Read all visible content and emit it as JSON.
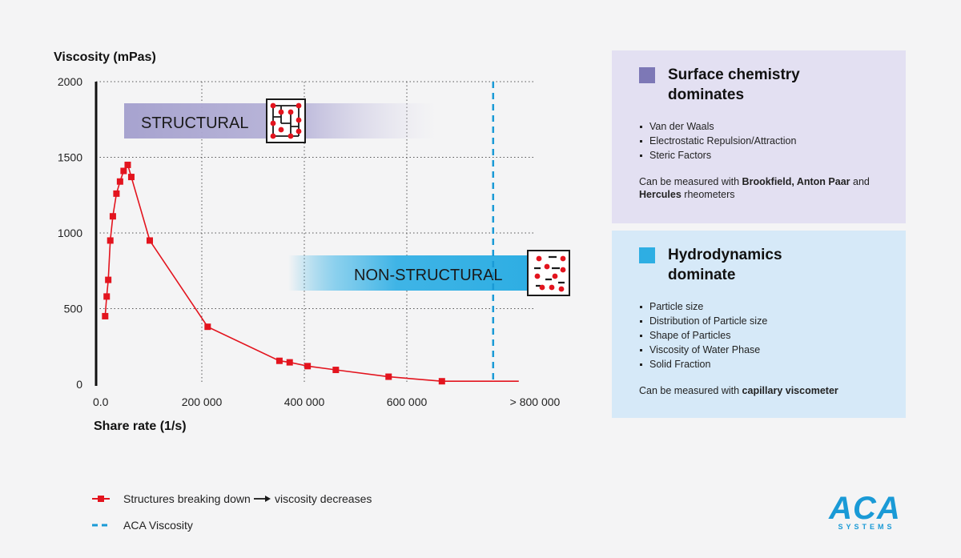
{
  "chart_data": {
    "type": "line",
    "ylabel": "Viscosity (mPas)",
    "xlabel": "Share rate (1/s)",
    "x_ticks": [
      "0.0",
      "200 000",
      "400 000",
      "600 000",
      "> 800 000"
    ],
    "x_tick_values": [
      0,
      200000,
      400000,
      600000,
      800000
    ],
    "y_ticks": [
      "0",
      "500",
      "1000",
      "1500",
      "2000"
    ],
    "y_tick_values": [
      0,
      500,
      1000,
      1500,
      2000
    ],
    "xlim": [
      0,
      820000
    ],
    "ylim": [
      0,
      2000
    ],
    "grid": "dotted",
    "series": [
      {
        "name": "Structures breaking down ➔ viscosity decreases",
        "color": "#e3141e",
        "marker": "square",
        "points": [
          [
            13000,
            450
          ],
          [
            16000,
            580
          ],
          [
            19000,
            690
          ],
          [
            23000,
            950
          ],
          [
            28000,
            1110
          ],
          [
            35000,
            1260
          ],
          [
            42000,
            1340
          ],
          [
            49000,
            1410
          ],
          [
            57000,
            1450
          ],
          [
            64000,
            1370
          ],
          [
            100000,
            950
          ],
          [
            213000,
            380
          ],
          [
            353000,
            155
          ],
          [
            373000,
            145
          ],
          [
            408000,
            120
          ],
          [
            463000,
            95
          ],
          [
            566000,
            50
          ],
          [
            670000,
            20
          ],
          [
            820000,
            20
          ]
        ],
        "markers_shown": 18
      },
      {
        "name": "ACA Viscosity",
        "color": "#1a9ad6",
        "style": "dashed",
        "x": 770000
      }
    ],
    "bands": [
      {
        "label": "STRUCTURAL",
        "color": "#a7a3cf"
      },
      {
        "label": "NON-STRUCTURAL",
        "color": "#2eaee3"
      }
    ]
  },
  "legend": {
    "item1_text_a": "Structures breaking down",
    "item1_text_b": "viscosity decreases",
    "item2_text": "ACA Viscosity"
  },
  "panels": {
    "surface": {
      "color": "#7d78b6",
      "title_line1": "Surface chemistry",
      "title_line2": "dominates",
      "items": [
        "Van der Waals",
        "Electrostatic Repulsion/Attraction",
        "Steric Factors"
      ],
      "note_a": "Can be measured with ",
      "note_b": "Brookfield, Anton Paar",
      "note_c": " and ",
      "note_d": "Hercules",
      "note_e": " rheometers"
    },
    "hydro": {
      "color": "#2eaee3",
      "title_line1": "Hydrodynamics",
      "title_line2": "dominate",
      "items": [
        "Particle size",
        "Distribution of Particle size",
        "Shape of Particles",
        "Viscosity of Water Phase",
        "Solid Fraction"
      ],
      "note_a": "Can be measured with ",
      "note_b": "capillary viscometer"
    }
  },
  "logo": {
    "text": "ACA",
    "subtext": "SYSTEMS",
    "color": "#1a9ad6"
  }
}
